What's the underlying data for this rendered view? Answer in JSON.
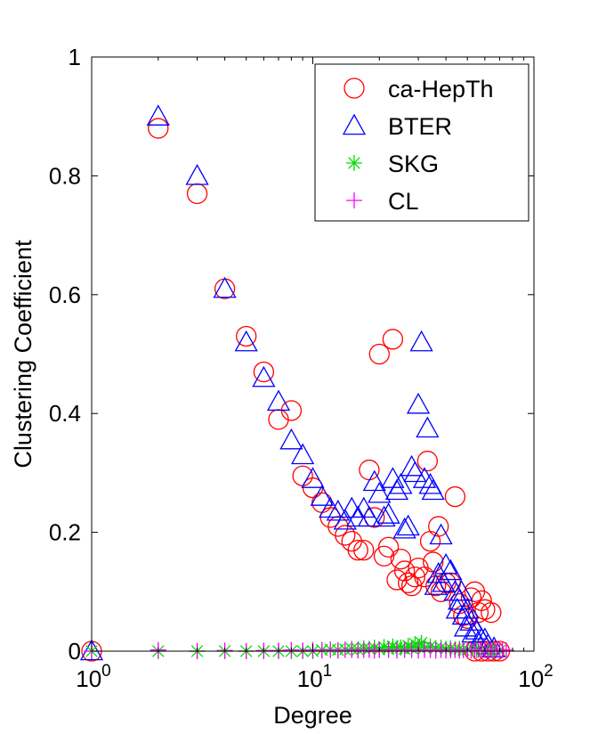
{
  "chart_data": {
    "type": "scatter",
    "xlabel": "Degree",
    "ylabel": "Clustering Coefficient",
    "xscale": "log",
    "xlim": [
      1,
      100
    ],
    "ylim": [
      0,
      1
    ],
    "x_ticks": [
      {
        "base": "10",
        "exp": "0"
      },
      {
        "base": "10",
        "exp": "1"
      },
      {
        "base": "10",
        "exp": "2"
      }
    ],
    "y_ticks": [
      "0",
      "0.2",
      "0.4",
      "0.6",
      "0.8",
      "1"
    ],
    "grid": false,
    "legend_position": "top-right",
    "series": [
      {
        "name": "ca-HepTh",
        "marker": "circle",
        "color": "#ff0000",
        "points": [
          [
            1,
            0
          ],
          [
            2,
            0.88
          ],
          [
            3,
            0.77
          ],
          [
            4,
            0.61
          ],
          [
            5,
            0.53
          ],
          [
            6,
            0.47
          ],
          [
            7,
            0.39
          ],
          [
            8,
            0.405
          ],
          [
            9,
            0.295
          ],
          [
            10,
            0.275
          ],
          [
            11,
            0.25
          ],
          [
            12,
            0.225
          ],
          [
            13,
            0.21
          ],
          [
            14,
            0.195
          ],
          [
            15,
            0.185
          ],
          [
            16,
            0.17
          ],
          [
            17,
            0.17
          ],
          [
            18,
            0.305
          ],
          [
            19,
            0.225
          ],
          [
            20,
            0.5
          ],
          [
            21,
            0.16
          ],
          [
            22,
            0.175
          ],
          [
            23,
            0.525
          ],
          [
            24,
            0.12
          ],
          [
            25,
            0.155
          ],
          [
            26,
            0.135
          ],
          [
            27,
            0.115
          ],
          [
            28,
            0.11
          ],
          [
            29,
            0.125
          ],
          [
            30,
            0.14
          ],
          [
            32,
            0.125
          ],
          [
            33,
            0.32
          ],
          [
            34,
            0.185
          ],
          [
            35,
            0.15
          ],
          [
            36,
            0.11
          ],
          [
            37,
            0.21
          ],
          [
            38,
            0.1
          ],
          [
            40,
            0.115
          ],
          [
            42,
            0.115
          ],
          [
            44,
            0.26
          ],
          [
            46,
            0.08
          ],
          [
            48,
            0.06
          ],
          [
            50,
            0.055
          ],
          [
            52,
            0.09
          ],
          [
            54,
            0.1
          ],
          [
            56,
            0.065
          ],
          [
            58,
            0.085
          ],
          [
            60,
            0.07
          ],
          [
            64,
            0.065
          ],
          [
            54,
            0
          ],
          [
            58,
            0
          ],
          [
            62,
            0
          ],
          [
            66,
            0
          ],
          [
            70,
            0
          ]
        ]
      },
      {
        "name": "BTER",
        "marker": "triangle",
        "color": "#0000ff",
        "points": [
          [
            1,
            0
          ],
          [
            2,
            0.9
          ],
          [
            3,
            0.8
          ],
          [
            4,
            0.61
          ],
          [
            5,
            0.52
          ],
          [
            6,
            0.46
          ],
          [
            7,
            0.42
          ],
          [
            8,
            0.355
          ],
          [
            9,
            0.33
          ],
          [
            10,
            0.29
          ],
          [
            11,
            0.26
          ],
          [
            12,
            0.24
          ],
          [
            13,
            0.235
          ],
          [
            14,
            0.22
          ],
          [
            15,
            0.24
          ],
          [
            16,
            0.225
          ],
          [
            17,
            0.24
          ],
          [
            18,
            0.225
          ],
          [
            19,
            0.285
          ],
          [
            20,
            0.265
          ],
          [
            21,
            0.225
          ],
          [
            22,
            0.23
          ],
          [
            23,
            0.29
          ],
          [
            24,
            0.27
          ],
          [
            25,
            0.28
          ],
          [
            26,
            0.205
          ],
          [
            27,
            0.21
          ],
          [
            28,
            0.31
          ],
          [
            29,
            0.3
          ],
          [
            30,
            0.415
          ],
          [
            31,
            0.52
          ],
          [
            32,
            0.29
          ],
          [
            33,
            0.375
          ],
          [
            34,
            0.28
          ],
          [
            35,
            0.27
          ],
          [
            36,
            0.11
          ],
          [
            37,
            0.13
          ],
          [
            38,
            0.195
          ],
          [
            39,
            0.115
          ],
          [
            40,
            0.145
          ],
          [
            42,
            0.135
          ],
          [
            44,
            0.1
          ],
          [
            46,
            0.085
          ],
          [
            48,
            0.06
          ],
          [
            50,
            0.07
          ],
          [
            52,
            0.05
          ],
          [
            55,
            0.035
          ],
          [
            58,
            0.02
          ],
          [
            62,
            0.01
          ],
          [
            66,
            0.005
          ],
          [
            45,
            0.07
          ],
          [
            47,
            0.1
          ],
          [
            49,
            0.04
          ],
          [
            53,
            0.03
          ],
          [
            56,
            0.015
          ],
          [
            60,
            0.02
          ]
        ]
      },
      {
        "name": "SKG",
        "marker": "asterisk",
        "color": "#00dd00",
        "points": [
          [
            1,
            0
          ],
          [
            2,
            0
          ],
          [
            3,
            0
          ],
          [
            4,
            0
          ],
          [
            5,
            0
          ],
          [
            6,
            0
          ],
          [
            7,
            0
          ],
          [
            8,
            0
          ],
          [
            9,
            0
          ],
          [
            10,
            0
          ],
          [
            11,
            0.002
          ],
          [
            12,
            0.003
          ],
          [
            13,
            0.002
          ],
          [
            14,
            0.003
          ],
          [
            15,
            0.004
          ],
          [
            16,
            0.003
          ],
          [
            17,
            0.005
          ],
          [
            18,
            0.004
          ],
          [
            19,
            0.006
          ],
          [
            20,
            0.003
          ],
          [
            21,
            0.007
          ],
          [
            22,
            0.004
          ],
          [
            23,
            0.008
          ],
          [
            24,
            0.005
          ],
          [
            25,
            0.006
          ],
          [
            26,
            0.004
          ],
          [
            27,
            0.009
          ],
          [
            28,
            0.005
          ],
          [
            29,
            0.012
          ],
          [
            30,
            0.007
          ],
          [
            31,
            0.014
          ],
          [
            32,
            0.006
          ],
          [
            34,
            0.008
          ],
          [
            36,
            0.005
          ],
          [
            38,
            0.006
          ],
          [
            40,
            0.004
          ],
          [
            42,
            0.005
          ],
          [
            44,
            0.003
          ],
          [
            46,
            0.004
          ],
          [
            48,
            0.002
          ],
          [
            50,
            0.003
          ],
          [
            55,
            0.002
          ],
          [
            60,
            0.002
          ],
          [
            65,
            0.001
          ],
          [
            70,
            0.001
          ]
        ]
      },
      {
        "name": "CL",
        "marker": "plus",
        "color": "#ff00ff",
        "points": [
          [
            1,
            0
          ],
          [
            2,
            0.002
          ],
          [
            3,
            0
          ],
          [
            4,
            0.001
          ],
          [
            5,
            0
          ],
          [
            6,
            0.001
          ],
          [
            7,
            0.001
          ],
          [
            8,
            0.002
          ],
          [
            9,
            0.001
          ],
          [
            10,
            0.002
          ],
          [
            11,
            0.001
          ],
          [
            12,
            0.002
          ],
          [
            13,
            0.001
          ],
          [
            14,
            0.002
          ],
          [
            15,
            0.002
          ],
          [
            16,
            0.001
          ],
          [
            17,
            0.002
          ],
          [
            18,
            0.002
          ],
          [
            19,
            0.001
          ],
          [
            20,
            0.002
          ],
          [
            22,
            0.002
          ],
          [
            24,
            0.001
          ],
          [
            26,
            0.002
          ],
          [
            28,
            0.002
          ],
          [
            30,
            0.001
          ],
          [
            32,
            0.002
          ],
          [
            34,
            0.002
          ],
          [
            36,
            0.001
          ],
          [
            38,
            0.002
          ],
          [
            40,
            0.001
          ],
          [
            42,
            0.002
          ],
          [
            44,
            0.002
          ],
          [
            46,
            0.001
          ],
          [
            48,
            0.002
          ],
          [
            50,
            0.002
          ],
          [
            52,
            0.001
          ],
          [
            54,
            0.002
          ],
          [
            56,
            0.002
          ],
          [
            58,
            0.001
          ],
          [
            60,
            0.002
          ],
          [
            62,
            0.001
          ],
          [
            64,
            0.002
          ],
          [
            66,
            0.001
          ],
          [
            68,
            0.002
          ],
          [
            70,
            0.001
          ],
          [
            72,
            0.002
          ],
          [
            75,
            0.001
          ]
        ]
      }
    ]
  }
}
